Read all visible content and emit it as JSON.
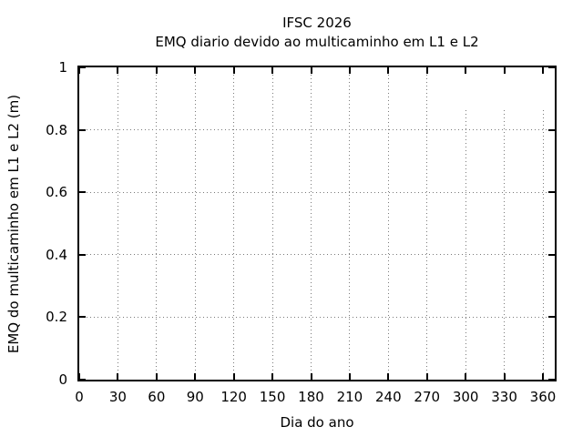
{
  "figure": {
    "title_line1": "IFSC 2026",
    "title_line2": "EMQ diario devido ao multicaminho em L1 e L2",
    "xlabel": "Dia do ano",
    "ylabel": "EMQ do multicaminho em L1 e L2 (m)"
  },
  "chart_data": {
    "type": "line",
    "title": "IFSC 2026",
    "subtitle": "EMQ diario devido ao multicaminho em L1 e L2",
    "xlabel": "Dia do ano",
    "ylabel": "EMQ do multicaminho em L1 e L2 (m)",
    "xlim": [
      0,
      360
    ],
    "ylim": [
      0,
      1
    ],
    "x_ticks": [
      0,
      30,
      60,
      90,
      120,
      150,
      180,
      210,
      240,
      270,
      300,
      330,
      360
    ],
    "y_ticks": [
      0,
      0.2,
      0.4,
      0.6,
      0.8,
      1
    ],
    "grid": true,
    "grid_style": "dotted",
    "legend": null,
    "series": [],
    "grid_vertical_gaps": [
      {
        "x": 300,
        "y_top": 0.863
      },
      {
        "x": 330,
        "y_top": 0.863
      },
      {
        "x": 360,
        "y_top": 0.863
      }
    ],
    "colors": {
      "frame": "#000000",
      "grid": "#7a7a7a",
      "text": "#000000",
      "background": "#ffffff"
    }
  }
}
